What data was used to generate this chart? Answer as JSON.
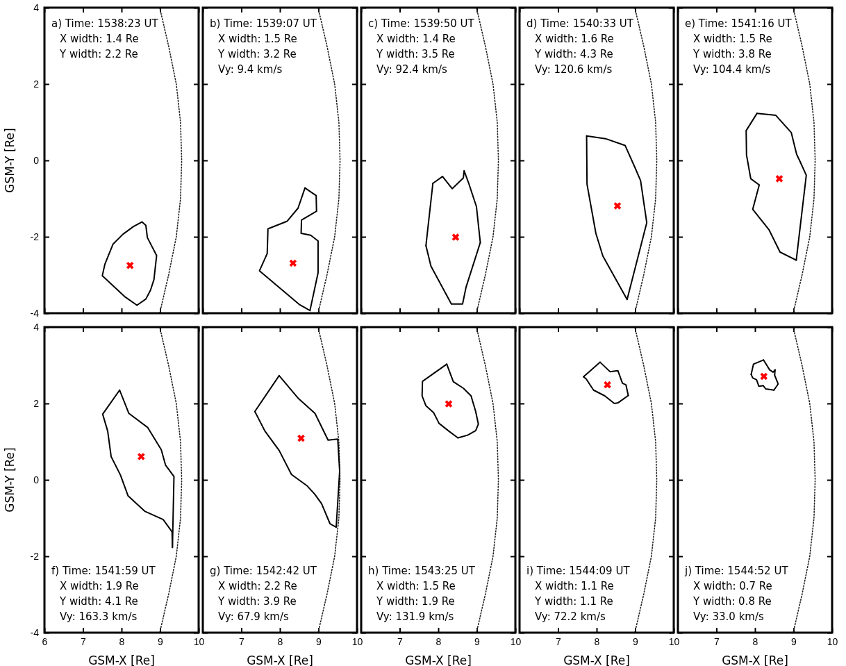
{
  "chart_data": [
    {
      "type": "line",
      "xlim": [
        6,
        10
      ],
      "ylim": [
        -4,
        4
      ],
      "xticks": [
        6,
        7,
        8,
        9,
        10
      ],
      "yticks": [
        -4,
        -2,
        0,
        2,
        4
      ],
      "tick_labels": "y",
      "ylabel": "GSM-Y [Re]",
      "annotations": [
        "a) Time: 1538:23 UT",
        "X width: 1.4 Re",
        "Y width: 2.2 Re"
      ],
      "series": [
        {
          "color": "#222222",
          "line_style": "dotted",
          "x": [
            8.99,
            9.22,
            9.42,
            9.53,
            9.56,
            9.53,
            9.42,
            9.22,
            8.99
          ],
          "values": [
            -4,
            -3,
            -2,
            -1,
            0,
            1,
            2,
            3,
            4
          ]
        },
        {
          "color": "#000000",
          "x": [
            8.53,
            8.63,
            8.67,
            8.91,
            8.84,
            8.75,
            8.63,
            8.4,
            8.1,
            7.5,
            7.57,
            7.78,
            8.04,
            8.31,
            8.53
          ],
          "values": [
            -1.61,
            -1.7,
            -2.02,
            -2.49,
            -3.12,
            -3.4,
            -3.63,
            -3.79,
            -3.58,
            -3.02,
            -2.71,
            -2.19,
            -1.93,
            -1.73,
            -1.61
          ]
        },
        {
          "type": "scatter",
          "color": "#ff0000",
          "marker": "cross",
          "x": [
            8.22
          ],
          "values": [
            -2.75
          ]
        }
      ]
    },
    {
      "type": "line",
      "xlim": [
        6,
        10
      ],
      "ylim": [
        -4,
        4
      ],
      "xticks": [
        6,
        7,
        8,
        9,
        10
      ],
      "yticks": [
        -4,
        -2,
        0,
        2,
        4
      ],
      "tick_labels": false,
      "annotations": [
        "b) Time: 1539:07 UT",
        "X width: 1.5 Re",
        "Y width: 3.2 Re",
        "Vy: 9.4 km/s"
      ],
      "series": [
        {
          "color": "#222222",
          "line_style": "dotted",
          "x": [
            8.99,
            9.22,
            9.42,
            9.53,
            9.56,
            9.53,
            9.42,
            9.22,
            8.99
          ],
          "values": [
            -4,
            -3,
            -2,
            -1,
            0,
            1,
            2,
            3,
            4
          ]
        },
        {
          "color": "#000000",
          "x": [
            8.65,
            8.94,
            8.95,
            8.56,
            8.55,
            8.8,
            8.99,
            8.99,
            8.78,
            8.5,
            7.47,
            7.67,
            7.69,
            8.19,
            8.47,
            8.65
          ],
          "values": [
            -0.72,
            -0.92,
            -1.33,
            -1.56,
            -1.91,
            -1.96,
            -2.11,
            -2.94,
            -3.93,
            -3.77,
            -2.89,
            -2.44,
            -1.79,
            -1.59,
            -1.25,
            -0.72
          ]
        },
        {
          "type": "scatter",
          "color": "#ff0000",
          "marker": "cross",
          "x": [
            8.34
          ],
          "values": [
            -2.69
          ]
        }
      ]
    },
    {
      "type": "line",
      "xlim": [
        6,
        10
      ],
      "ylim": [
        -4,
        4
      ],
      "xticks": [
        6,
        7,
        8,
        9,
        10
      ],
      "yticks": [
        -4,
        -2,
        0,
        2,
        4
      ],
      "tick_labels": false,
      "annotations": [
        "c) Time: 1539:50 UT",
        "X width: 1.4 Re",
        "Y width: 3.5 Re",
        "Vy: 92.4 km/s"
      ],
      "series": [
        {
          "color": "#222222",
          "line_style": "dotted",
          "x": [
            8.99,
            9.22,
            9.42,
            9.53,
            9.56,
            9.53,
            9.42,
            9.22,
            8.99
          ],
          "values": [
            -4,
            -3,
            -2,
            -1,
            0,
            1,
            2,
            3,
            4
          ]
        },
        {
          "color": "#000000",
          "x": [
            7.86,
            8.11,
            8.36,
            8.65,
            8.67,
            8.79,
            8.99,
            9.09,
            8.72,
            8.63,
            8.34,
            7.81,
            7.68,
            7.86
          ],
          "values": [
            -0.6,
            -0.42,
            -0.74,
            -0.46,
            -0.27,
            -0.6,
            -1.21,
            -2.15,
            -3.32,
            -3.76,
            -3.76,
            -2.77,
            -2.23,
            -0.6
          ]
        },
        {
          "type": "scatter",
          "color": "#ff0000",
          "marker": "cross",
          "x": [
            8.45
          ],
          "values": [
            -2.01
          ]
        }
      ]
    },
    {
      "type": "line",
      "xlim": [
        6,
        10
      ],
      "ylim": [
        -4,
        4
      ],
      "xticks": [
        6,
        7,
        8,
        9,
        10
      ],
      "yticks": [
        -4,
        -2,
        0,
        2,
        4
      ],
      "tick_labels": false,
      "annotations": [
        "d) Time: 1540:33 UT",
        "X width: 1.6 Re",
        "Y width: 4.3 Re",
        "Vy: 120.6 km/s"
      ],
      "series": [
        {
          "color": "#222222",
          "line_style": "dotted",
          "x": [
            8.99,
            9.22,
            9.42,
            9.53,
            9.56,
            9.53,
            9.42,
            9.22,
            8.99
          ],
          "values": [
            -4,
            -3,
            -2,
            -1,
            0,
            1,
            2,
            3,
            4
          ]
        },
        {
          "color": "#000000",
          "x": [
            7.74,
            8.23,
            8.74,
            9.0,
            9.14,
            9.3,
            8.79,
            8.16,
            7.98,
            7.75,
            7.74
          ],
          "values": [
            0.64,
            0.57,
            0.39,
            -0.2,
            -0.53,
            -1.63,
            -3.64,
            -2.5,
            -1.91,
            -0.62,
            0.64
          ]
        },
        {
          "type": "scatter",
          "color": "#ff0000",
          "marker": "cross",
          "x": [
            8.54
          ],
          "values": [
            -1.19
          ]
        }
      ]
    },
    {
      "type": "line",
      "xlim": [
        6,
        10
      ],
      "ylim": [
        -4,
        4
      ],
      "xticks": [
        6,
        7,
        8,
        9,
        10
      ],
      "yticks": [
        -4,
        -2,
        0,
        2,
        4
      ],
      "tick_labels": false,
      "annotations": [
        "e) Time: 1541:16 UT",
        "X width: 1.5 Re",
        "Y width: 3.8 Re",
        "Vy: 104.4 km/s"
      ],
      "series": [
        {
          "color": "#222222",
          "line_style": "dotted",
          "x": [
            8.99,
            9.22,
            9.42,
            9.53,
            9.56,
            9.53,
            9.42,
            9.22,
            8.99
          ],
          "values": [
            -4,
            -3,
            -2,
            -1,
            0,
            1,
            2,
            3,
            4
          ]
        },
        {
          "color": "#000000",
          "x": [
            8.05,
            8.54,
            8.94,
            9.08,
            9.16,
            9.33,
            9.07,
            8.65,
            8.36,
            7.94,
            8.11,
            7.89,
            7.78,
            7.77,
            8.05
          ],
          "values": [
            1.23,
            1.18,
            0.73,
            0.16,
            -0.01,
            -0.39,
            -2.61,
            -2.4,
            -1.81,
            -1.28,
            -0.64,
            -0.48,
            0.14,
            0.78,
            1.23
          ]
        },
        {
          "type": "scatter",
          "color": "#ff0000",
          "marker": "cross",
          "x": [
            8.63
          ],
          "values": [
            -0.48
          ]
        }
      ]
    },
    {
      "type": "line",
      "xlim": [
        6,
        10
      ],
      "ylim": [
        -4,
        4
      ],
      "xticks": [
        6,
        7,
        8,
        9,
        10
      ],
      "yticks": [
        -4,
        -2,
        0,
        2,
        4
      ],
      "xlabel": "GSM-X [Re]",
      "ylabel": "GSM-Y [Re]",
      "annotations": [
        "f) Time: 1541:59 UT",
        "X width: 1.9 Re",
        "Y width: 4.1 Re",
        "Vy: 163.3 km/s"
      ],
      "series": [
        {
          "color": "#222222",
          "line_style": "dotted",
          "x": [
            8.99,
            9.22,
            9.42,
            9.53,
            9.56,
            9.53,
            9.42,
            9.22,
            8.99
          ],
          "values": [
            -4,
            -3,
            -2,
            -1,
            0,
            1,
            2,
            3,
            4
          ]
        },
        {
          "color": "#000000",
          "x": [
            7.95,
            8.19,
            8.68,
            9.03,
            9.14,
            9.36,
            9.32,
            9.31,
            9.08,
            8.6,
            8.17,
            7.97,
            7.73,
            7.64,
            7.51,
            7.95
          ],
          "values": [
            2.35,
            1.74,
            1.37,
            0.79,
            0.39,
            0.09,
            -1.77,
            -1.36,
            -1.04,
            -0.82,
            -0.42,
            0.13,
            0.61,
            1.28,
            1.72,
            2.35
          ]
        },
        {
          "type": "scatter",
          "color": "#ff0000",
          "marker": "cross",
          "x": [
            8.51
          ],
          "values": [
            0.61
          ]
        }
      ]
    },
    {
      "type": "line",
      "xlim": [
        6,
        10
      ],
      "ylim": [
        -4,
        4
      ],
      "xticks": [
        7,
        8,
        9,
        10
      ],
      "yticks": [
        -4,
        -2,
        0,
        2,
        4
      ],
      "tick_labels": "x",
      "xlabel": "GSM-X [Re]",
      "annotations": [
        "g) Time: 1542:42 UT",
        "X width: 2.2 Re",
        "Y width: 3.9 Re",
        "Vy: 67.9 km/s"
      ],
      "series": [
        {
          "color": "#222222",
          "line_style": "dotted",
          "x": [
            8.99,
            9.22,
            9.42,
            9.53,
            9.56,
            9.53,
            9.42,
            9.22,
            8.99
          ],
          "values": [
            -4,
            -3,
            -2,
            -1,
            0,
            1,
            2,
            3,
            4
          ]
        },
        {
          "color": "#000000",
          "x": [
            7.98,
            8.48,
            8.91,
            9.25,
            9.5,
            9.55,
            9.46,
            9.3,
            9.08,
            8.9,
            8.71,
            8.3,
            7.98,
            7.61,
            7.35,
            7.98
          ],
          "values": [
            2.73,
            2.13,
            1.74,
            1.04,
            1.07,
            0.23,
            -1.24,
            -1.15,
            -0.62,
            -0.37,
            -0.16,
            0.14,
            0.77,
            1.28,
            1.79,
            2.73
          ]
        },
        {
          "type": "scatter",
          "color": "#ff0000",
          "marker": "cross",
          "x": [
            8.55
          ],
          "values": [
            1.09
          ]
        }
      ]
    },
    {
      "type": "line",
      "xlim": [
        6,
        10
      ],
      "ylim": [
        -4,
        4
      ],
      "xticks": [
        7,
        8,
        9,
        10
      ],
      "yticks": [
        -4,
        -2,
        0,
        2,
        4
      ],
      "tick_labels": "x",
      "xlabel": "GSM-X [Re]",
      "annotations": [
        "h) Time: 1543:25 UT",
        "X width: 1.5 Re",
        "Y width: 1.9 Re",
        "Vy: 131.9 km/s"
      ],
      "series": [
        {
          "color": "#222222",
          "line_style": "dotted",
          "x": [
            8.99,
            9.22,
            9.42,
            9.53,
            9.56,
            9.53,
            9.42,
            9.22,
            8.99
          ],
          "values": [
            -4,
            -3,
            -2,
            -1,
            0,
            1,
            2,
            3,
            4
          ]
        },
        {
          "color": "#000000",
          "x": [
            8.22,
            8.39,
            8.65,
            8.85,
            8.97,
            9.04,
            8.97,
            8.76,
            8.51,
            8.27,
            8.02,
            7.88,
            7.68,
            7.58,
            7.59,
            8.22
          ],
          "values": [
            3.03,
            2.57,
            2.4,
            2.2,
            1.79,
            1.46,
            1.29,
            1.17,
            1.1,
            1.28,
            1.48,
            1.76,
            1.94,
            2.2,
            2.58,
            3.03
          ]
        },
        {
          "type": "scatter",
          "color": "#ff0000",
          "marker": "cross",
          "x": [
            8.27
          ],
          "values": [
            1.99
          ]
        }
      ]
    },
    {
      "type": "line",
      "xlim": [
        6,
        10
      ],
      "ylim": [
        -4,
        4
      ],
      "xticks": [
        7,
        8,
        9,
        10
      ],
      "yticks": [
        -4,
        -2,
        0,
        2,
        4
      ],
      "tick_labels": "x",
      "xlabel": "GSM-X [Re]",
      "annotations": [
        "i) Time: 1544:09 UT",
        "X width: 1.1 Re",
        "Y width: 1.1 Re",
        "Vy: 72.2 km/s"
      ],
      "series": [
        {
          "color": "#222222",
          "line_style": "dotted",
          "x": [
            8.99,
            9.22,
            9.42,
            9.53,
            9.56,
            9.53,
            9.42,
            9.22,
            8.99
          ],
          "values": [
            -4,
            -3,
            -2,
            -1,
            0,
            1,
            2,
            3,
            4
          ]
        },
        {
          "color": "#000000",
          "x": [
            8.09,
            8.35,
            8.55,
            8.67,
            8.76,
            8.82,
            8.56,
            8.46,
            8.21,
            7.92,
            7.73,
            7.66,
            8.09
          ],
          "values": [
            3.08,
            2.83,
            2.86,
            2.53,
            2.49,
            2.21,
            2.02,
            2.0,
            2.2,
            2.35,
            2.64,
            2.7,
            3.08
          ]
        },
        {
          "type": "scatter",
          "color": "#ff0000",
          "marker": "cross",
          "x": [
            8.28
          ],
          "values": [
            2.49
          ]
        }
      ]
    },
    {
      "type": "line",
      "xlim": [
        6,
        10
      ],
      "ylim": [
        -4,
        4
      ],
      "xticks": [
        7,
        8,
        9,
        10
      ],
      "yticks": [
        -4,
        -2,
        0,
        2,
        4
      ],
      "tick_labels": "x",
      "xlabel": "GSM-X [Re]",
      "annotations": [
        "j) Time: 1544:52 UT",
        "X width: 0.7 Re",
        "Y width: 0.8 Re",
        "Vy: 33.0 km/s"
      ],
      "series": [
        {
          "color": "#222222",
          "line_style": "dotted",
          "x": [
            8.99,
            9.22,
            9.42,
            9.53,
            9.56,
            9.53,
            9.42,
            9.22,
            8.99
          ],
          "values": [
            -4,
            -3,
            -2,
            -1,
            0,
            1,
            2,
            3,
            4
          ]
        },
        {
          "color": "#000000",
          "x": [
            8.22,
            8.38,
            8.47,
            8.52,
            8.51,
            8.6,
            8.49,
            8.28,
            8.21,
            8.1,
            8.04,
            7.94,
            7.9,
            7.96,
            8.22
          ],
          "values": [
            3.14,
            2.88,
            2.82,
            2.88,
            2.74,
            2.51,
            2.35,
            2.38,
            2.47,
            2.45,
            2.62,
            2.67,
            2.76,
            3.03,
            3.14
          ]
        },
        {
          "type": "scatter",
          "color": "#ff0000",
          "marker": "cross",
          "x": [
            8.23
          ],
          "values": [
            2.71
          ]
        }
      ]
    }
  ]
}
